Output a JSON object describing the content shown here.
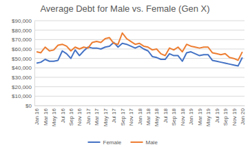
{
  "chart_data": {
    "type": "line",
    "title": "Average Debt for Male vs. Female (Gen X)",
    "categories": [
      "Jan 16",
      null,
      "Mar 16",
      null,
      "May 16",
      null,
      "Jul 16",
      null,
      "Sep 16",
      null,
      "Nov 16",
      null,
      "Jan 17",
      null,
      "Mar 17",
      null,
      "May 17",
      null,
      "Jul 17",
      null,
      "Sep 17",
      null,
      "Nov 17",
      null,
      "Jan 18",
      null,
      "Mar 18",
      null,
      "May 18",
      null,
      "Jul 18",
      null,
      "Sep 18",
      null,
      "Nov 18",
      null,
      "Jan 19",
      null,
      "Mar 19",
      null,
      "May 19",
      null,
      "Jul 19",
      null,
      "Sep 19",
      null,
      "Nov 19",
      null,
      "Jan 20"
    ],
    "series": [
      {
        "name": "Female",
        "color": "#4472c4",
        "values": [
          45000,
          46000,
          49000,
          47000,
          47000,
          48000,
          58000,
          55000,
          50000,
          59000,
          53000,
          58000,
          62000,
          61000,
          61000,
          60000,
          62000,
          63000,
          67000,
          62000,
          66000,
          65000,
          63000,
          61000,
          63000,
          60000,
          58000,
          52000,
          51000,
          49000,
          49000,
          55000,
          53000,
          53000,
          47000,
          56000,
          57000,
          55000,
          53000,
          54000,
          54000,
          48000,
          47000,
          46000,
          45000,
          44000,
          43000,
          42000,
          51000
        ]
      },
      {
        "name": "Male",
        "color": "#ed7d31",
        "values": [
          57000,
          56000,
          62000,
          58000,
          59000,
          64000,
          65000,
          63000,
          58000,
          62000,
          60000,
          62000,
          61000,
          67000,
          68000,
          67000,
          71000,
          72000,
          66000,
          65000,
          77000,
          71000,
          68000,
          65000,
          66000,
          63000,
          62000,
          59000,
          60000,
          55000,
          53000,
          61000,
          59000,
          62000,
          57000,
          65000,
          63000,
          62000,
          61000,
          62000,
          62000,
          56000,
          55000,
          54000,
          55000,
          51000,
          50000,
          48000,
          57000
        ]
      }
    ],
    "ylim": [
      0,
      90000
    ],
    "yticks": [
      {
        "value": 0,
        "label": "$0"
      },
      {
        "value": 10000,
        "label": "$10,000"
      },
      {
        "value": 20000,
        "label": "$20,000"
      },
      {
        "value": 30000,
        "label": "$30,000"
      },
      {
        "value": 40000,
        "label": "$40,000"
      },
      {
        "value": 50000,
        "label": "$50,000"
      },
      {
        "value": 60000,
        "label": "$60,000"
      },
      {
        "value": 70000,
        "label": "$70,000"
      },
      {
        "value": 80000,
        "label": "$80,000"
      },
      {
        "value": 90000,
        "label": "$90,000"
      }
    ],
    "grid": true,
    "legend": "bottom"
  }
}
